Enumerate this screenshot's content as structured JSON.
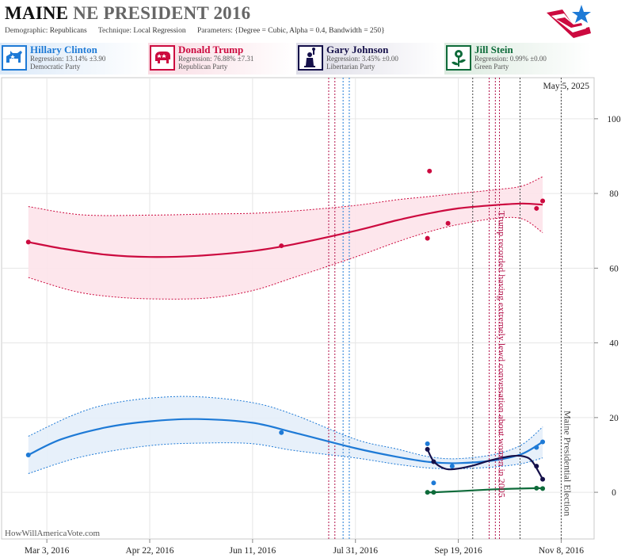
{
  "header": {
    "state": "MAINE",
    "title_rest": "NE PRESIDENT 2016",
    "demographic_label": "Demographic:",
    "demographic_value": "Republicans",
    "technique_label": "Technique:",
    "technique_value": "Local Regression",
    "parameters_label": "Parameters:",
    "parameters_value": "{Degree = Cubic, Alpha = 0.4, Bandwidth = 250}"
  },
  "candidates": [
    {
      "name": "Hillary Clinton",
      "regression": "Regression: 13.14% ±3.90",
      "party": "Democratic Party",
      "color": "#1e7ad6",
      "icon": "donkey-icon"
    },
    {
      "name": "Donald Trump",
      "regression": "Regression: 76.88% ±7.31",
      "party": "Republican Party",
      "color": "#cc0a3f",
      "icon": "elephant-icon"
    },
    {
      "name": "Gary Johnson",
      "regression": "Regression: 3.45% ±0.00",
      "party": "Libertarian Party",
      "color": "#15104a",
      "icon": "statue-of-liberty-icon"
    },
    {
      "name": "Jill Stein",
      "regression": "Regression: 0.99% ±0.00",
      "party": "Green Party",
      "color": "#0e6b3a",
      "icon": "rose-icon"
    }
  ],
  "chart_data": {
    "type": "line",
    "date_label": "May 5, 2025",
    "watermark": "HowWillAmericaVote.com",
    "x_ticks": [
      "Mar 3, 2016",
      "Apr 22, 2016",
      "Jun 11, 2016",
      "Jul 31, 2016",
      "Sep 19, 2016",
      "Nov 8, 2016"
    ],
    "x_range": [
      "2016-02-10",
      "2016-11-24"
    ],
    "y_ticks": [
      0,
      20,
      40,
      60,
      80,
      100
    ],
    "ylim": [
      -12.5,
      111
    ],
    "grid": true,
    "annotations": [
      {
        "date": "2016-10-07",
        "text": "Trump recorded having extremely lewd conversation about women in 2005",
        "color": "#b3124a"
      },
      {
        "date": "2016-11-08",
        "text": "Maine Presidential Election",
        "color": "#444444"
      }
    ],
    "event_lines": [
      {
        "date": "2016-07-18",
        "color": "#b3124a"
      },
      {
        "date": "2016-07-21",
        "color": "#b3124a"
      },
      {
        "date": "2016-07-25",
        "color": "#1e7ad6"
      },
      {
        "date": "2016-07-28",
        "color": "#1e7ad6"
      },
      {
        "date": "2016-09-26",
        "color": "#444444"
      },
      {
        "date": "2016-10-04",
        "color": "#b3124a"
      },
      {
        "date": "2016-10-07",
        "color": "#b3124a"
      },
      {
        "date": "2016-10-09",
        "color": "#b3124a"
      },
      {
        "date": "2016-10-19",
        "color": "#444444"
      },
      {
        "date": "2016-11-08",
        "color": "#444444"
      }
    ],
    "series": [
      {
        "name": "Donald Trump",
        "color": "#cc0a3f",
        "band_fill": "#fde3ea",
        "points": [
          [
            "2016-02-23",
            67
          ],
          [
            "2016-06-25",
            66
          ],
          [
            "2016-09-04",
            68
          ],
          [
            "2016-09-05",
            86
          ],
          [
            "2016-09-14",
            72
          ],
          [
            "2016-10-27",
            76
          ],
          [
            "2016-10-30",
            78
          ]
        ],
        "fit": [
          [
            "2016-02-23",
            67
          ],
          [
            "2016-03-10",
            65.3
          ],
          [
            "2016-04-01",
            63.6
          ],
          [
            "2016-04-22",
            63.0
          ],
          [
            "2016-05-15",
            63.3
          ],
          [
            "2016-06-11",
            64.6
          ],
          [
            "2016-07-01",
            66.4
          ],
          [
            "2016-07-31",
            70.0
          ],
          [
            "2016-08-20",
            72.8
          ],
          [
            "2016-09-05",
            74.7
          ],
          [
            "2016-09-19",
            76.0
          ],
          [
            "2016-10-07",
            76.9
          ],
          [
            "2016-10-20",
            77.3
          ],
          [
            "2016-10-30",
            77.0
          ]
        ],
        "upper": [
          [
            "2016-02-23",
            76.5
          ],
          [
            "2016-03-20",
            74.3
          ],
          [
            "2016-04-22",
            74.2
          ],
          [
            "2016-05-20",
            74.5
          ],
          [
            "2016-06-11",
            74.7
          ],
          [
            "2016-07-01",
            75.3
          ],
          [
            "2016-07-31",
            76.8
          ],
          [
            "2016-08-20",
            78.3
          ],
          [
            "2016-09-05",
            79.2
          ],
          [
            "2016-09-19",
            80.0
          ],
          [
            "2016-10-07",
            81.0
          ],
          [
            "2016-10-20",
            82.0
          ],
          [
            "2016-10-30",
            84.5
          ]
        ],
        "lower": [
          [
            "2016-02-23",
            57.5
          ],
          [
            "2016-03-15",
            54.0
          ],
          [
            "2016-04-01",
            52.5
          ],
          [
            "2016-04-22",
            51.8
          ],
          [
            "2016-05-20",
            52.0
          ],
          [
            "2016-06-11",
            54.0
          ],
          [
            "2016-07-01",
            57.5
          ],
          [
            "2016-07-31",
            63.0
          ],
          [
            "2016-08-20",
            67.0
          ],
          [
            "2016-09-05",
            69.8
          ],
          [
            "2016-09-19",
            71.7
          ],
          [
            "2016-10-07",
            73.3
          ],
          [
            "2016-10-20",
            73.2
          ],
          [
            "2016-10-30",
            69.5
          ]
        ]
      },
      {
        "name": "Hillary Clinton",
        "color": "#1e7ad6",
        "band_fill": "#e4eef9",
        "points": [
          [
            "2016-02-23",
            10
          ],
          [
            "2016-06-25",
            16
          ],
          [
            "2016-09-04",
            13
          ],
          [
            "2016-09-07",
            2.5
          ],
          [
            "2016-09-16",
            7
          ],
          [
            "2016-10-27",
            12
          ],
          [
            "2016-10-30",
            13.5
          ]
        ],
        "fit": [
          [
            "2016-02-23",
            10
          ],
          [
            "2016-03-10",
            14.2
          ],
          [
            "2016-04-01",
            17.4
          ],
          [
            "2016-04-22",
            19.0
          ],
          [
            "2016-05-15",
            19.6
          ],
          [
            "2016-06-11",
            18.6
          ],
          [
            "2016-07-01",
            16.0
          ],
          [
            "2016-07-31",
            11.8
          ],
          [
            "2016-08-20",
            9.5
          ],
          [
            "2016-09-05",
            8.1
          ],
          [
            "2016-09-19",
            7.8
          ],
          [
            "2016-10-07",
            8.6
          ],
          [
            "2016-10-20",
            10.3
          ],
          [
            "2016-10-30",
            13.5
          ]
        ],
        "upper": [
          [
            "2016-02-23",
            15
          ],
          [
            "2016-03-15",
            20.5
          ],
          [
            "2016-04-01",
            23.5
          ],
          [
            "2016-04-22",
            25.2
          ],
          [
            "2016-05-15",
            25.6
          ],
          [
            "2016-06-11",
            24.0
          ],
          [
            "2016-07-01",
            20.8
          ],
          [
            "2016-07-31",
            14.2
          ],
          [
            "2016-08-20",
            11.6
          ],
          [
            "2016-09-05",
            9.5
          ],
          [
            "2016-09-19",
            9.0
          ],
          [
            "2016-10-07",
            10.2
          ],
          [
            "2016-10-20",
            12.8
          ],
          [
            "2016-10-30",
            17.5
          ]
        ],
        "lower": [
          [
            "2016-02-23",
            5
          ],
          [
            "2016-03-20",
            9.5
          ],
          [
            "2016-04-22",
            12.5
          ],
          [
            "2016-05-20",
            13.2
          ],
          [
            "2016-06-11",
            13.0
          ],
          [
            "2016-07-01",
            11.2
          ],
          [
            "2016-07-31",
            9.2
          ],
          [
            "2016-08-20",
            7.5
          ],
          [
            "2016-09-05",
            6.5
          ],
          [
            "2016-09-19",
            6.3
          ],
          [
            "2016-10-07",
            6.8
          ],
          [
            "2016-10-20",
            7.7
          ],
          [
            "2016-10-30",
            9.2
          ]
        ]
      },
      {
        "name": "Gary Johnson",
        "color": "#15104a",
        "points": [
          [
            "2016-09-04",
            11.5
          ],
          [
            "2016-09-07",
            8.2
          ],
          [
            "2016-10-27",
            7.0
          ],
          [
            "2016-10-30",
            3.5
          ]
        ],
        "fit": [
          [
            "2016-09-04",
            11.5
          ],
          [
            "2016-09-07",
            8.3
          ],
          [
            "2016-09-12",
            6.4
          ],
          [
            "2016-09-17",
            6.2
          ],
          [
            "2016-09-25",
            7.0
          ],
          [
            "2016-10-05",
            8.6
          ],
          [
            "2016-10-15",
            9.7
          ],
          [
            "2016-10-21",
            9.6
          ],
          [
            "2016-10-25",
            8.2
          ],
          [
            "2016-10-30",
            3.5
          ]
        ]
      },
      {
        "name": "Jill Stein",
        "color": "#0e6b3a",
        "points": [
          [
            "2016-09-04",
            0.0
          ],
          [
            "2016-09-07",
            0.0
          ],
          [
            "2016-10-27",
            1.1
          ],
          [
            "2016-10-30",
            1.0
          ]
        ],
        "fit": [
          [
            "2016-09-04",
            0.0
          ],
          [
            "2016-09-07",
            0.0
          ],
          [
            "2016-09-19",
            0.3
          ],
          [
            "2016-10-07",
            0.8
          ],
          [
            "2016-10-27",
            1.1
          ],
          [
            "2016-10-30",
            1.0
          ]
        ]
      }
    ]
  }
}
